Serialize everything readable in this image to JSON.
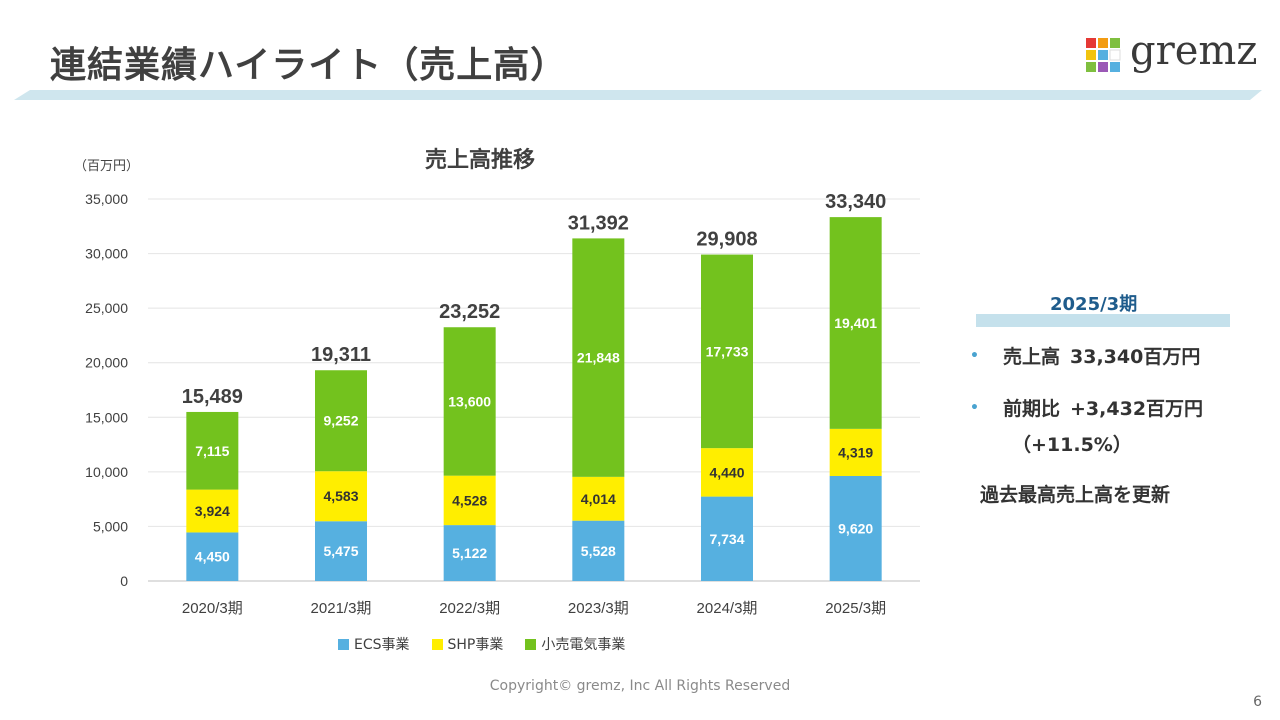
{
  "slide": {
    "title": "連結業績ハイライト（売上高）",
    "logo_text": "gremz",
    "copyright": "Copyright© gremz, Inc All Rights Reserved",
    "page_number": "6"
  },
  "colors": {
    "ecs": "#56b0e0",
    "shp": "#ffee00",
    "retail": "#73c21e",
    "band": "#cfe6ee",
    "side_heading": "#1f5c8c"
  },
  "chart_data": {
    "type": "bar",
    "stacked": true,
    "title": "売上高推移",
    "unit_label": "（百万円）",
    "categories": [
      "2020/3期",
      "2021/3期",
      "2022/3期",
      "2023/3期",
      "2024/3期",
      "2025/3期"
    ],
    "series": [
      {
        "name": "ECS事業",
        "values": [
          4450,
          5475,
          5122,
          5528,
          7734,
          9620
        ],
        "color": "#56b0e0",
        "label_color": "#ffffff"
      },
      {
        "name": "SHP事業",
        "values": [
          3924,
          4583,
          4528,
          4014,
          4440,
          4319
        ],
        "color": "#ffee00",
        "label_color": "#333333"
      },
      {
        "name": "小売電気事業",
        "values": [
          7115,
          9252,
          13600,
          21848,
          17733,
          19401
        ],
        "color": "#73c21e",
        "label_color": "#ffffff"
      }
    ],
    "totals": [
      15489,
      19311,
      23252,
      31392,
      29908,
      33340
    ],
    "ylim": [
      0,
      35000
    ],
    "yticks": [
      0,
      5000,
      10000,
      15000,
      20000,
      25000,
      30000,
      35000
    ],
    "grid": true,
    "legend_position": "bottom"
  },
  "side_panel": {
    "heading": "2025/3期",
    "bullets": [
      {
        "label": "売上高",
        "value": "33,340百万円"
      },
      {
        "label": "前期比",
        "value": "+3,432百万円"
      }
    ],
    "sub_line": "（+11.5%）",
    "note": "過去最高売上高を更新"
  }
}
